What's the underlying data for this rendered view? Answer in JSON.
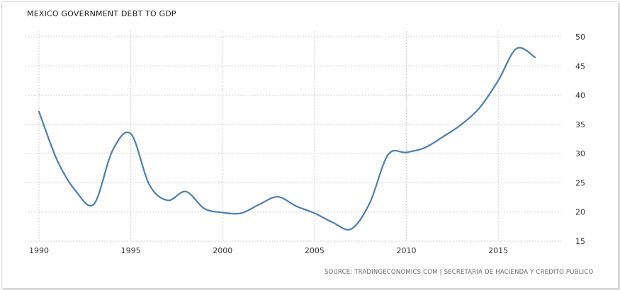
{
  "chart_data": {
    "type": "line",
    "title": "MEXICO GOVERNMENT DEBT TO GDP",
    "xlabel": "",
    "ylabel": "",
    "xlim": [
      1990,
      2017
    ],
    "ylim": [
      15,
      50
    ],
    "x_ticks": [
      1990,
      1995,
      2000,
      2005,
      2010,
      2015
    ],
    "y_ticks": [
      15,
      20,
      25,
      30,
      35,
      40,
      45,
      50
    ],
    "grid": true,
    "line_color": "#4a7fb0",
    "series": [
      {
        "name": "Mexico Government Debt to GDP",
        "x": [
          1990,
          1991,
          1992,
          1993,
          1994,
          1995,
          1996,
          1997,
          1998,
          1999,
          2000,
          2001,
          2002,
          2003,
          2004,
          2005,
          2006,
          2007,
          2008,
          2009,
          2010,
          2011,
          2012,
          2013,
          2014,
          2015,
          2016,
          2017
        ],
        "values": [
          37.2,
          28.8,
          23.6,
          21.4,
          30.5,
          33.4,
          24.7,
          22.0,
          23.5,
          20.6,
          19.9,
          19.8,
          21.3,
          22.6,
          21.0,
          19.8,
          18.2,
          17.1,
          21.5,
          29.8,
          30.2,
          31.0,
          32.9,
          35.0,
          37.9,
          42.5,
          48.0,
          46.5
        ]
      }
    ],
    "source": "SOURCE: TRADINGECONOMICS.COM  |  SECRETARIA DE HACIENDA Y CREDITO PUBLICO"
  }
}
